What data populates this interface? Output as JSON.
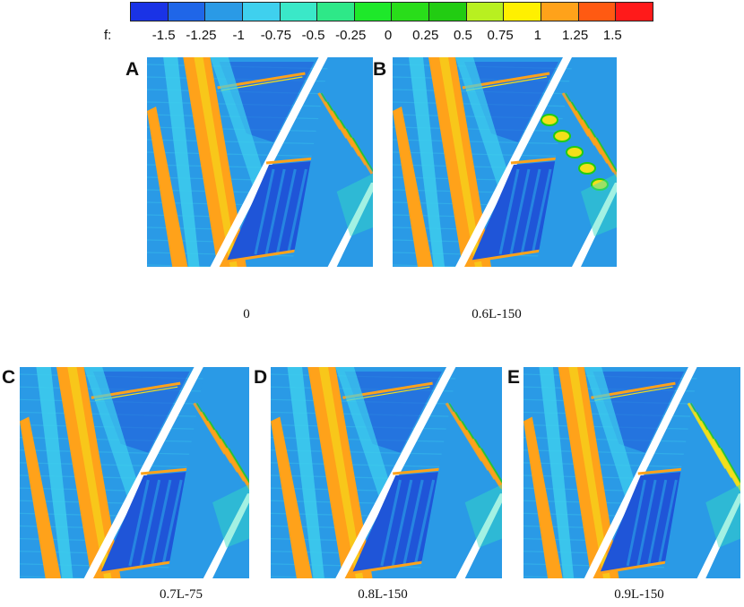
{
  "colorbar": {
    "label": "f:",
    "ticks": [
      "-1.5",
      "-1.25",
      "-1",
      "-0.75",
      "-0.5",
      "-0.25",
      "0",
      "0.25",
      "0.5",
      "0.75",
      "1",
      "1.25",
      "1.5"
    ],
    "colors": [
      "#1a33e6",
      "#1f66e8",
      "#2a9ae6",
      "#3fd0ee",
      "#3ae8c8",
      "#2ee888",
      "#1ee82a",
      "#29dd1a",
      "#22cc12",
      "#b8f020",
      "#fff000",
      "#ffa21a",
      "#ff5a12",
      "#ff1a1a"
    ]
  },
  "panels": [
    {
      "letter": "A",
      "caption": "0"
    },
    {
      "letter": "B",
      "caption": "0.6L-150"
    },
    {
      "letter": "C",
      "caption": "0.7L-75"
    },
    {
      "letter": "D",
      "caption": "0.8L-150"
    },
    {
      "letter": "E",
      "caption": "0.9L-150"
    }
  ],
  "palette": {
    "background": "#2a9ae6",
    "deep": "#1f55d8",
    "cyan": "#3fd0ee",
    "orange": "#ffa21a",
    "yellow": "#f4e01a",
    "green": "#22cc12",
    "teal": "#33e0c0",
    "white": "#ffffff"
  }
}
